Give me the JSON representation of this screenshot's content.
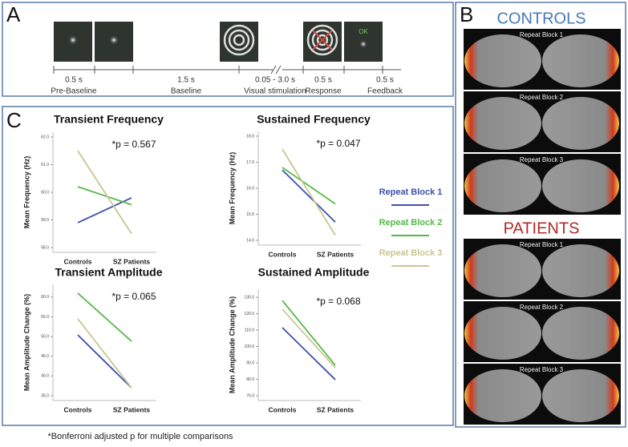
{
  "panel_labels": {
    "a": "A",
    "b": "B",
    "c": "C"
  },
  "timeline": {
    "steps": [
      {
        "duration": "0.5 s",
        "label": "Pre-Baseline"
      },
      {
        "duration": "1.5 s",
        "label": "Baseline"
      },
      {
        "duration": "0.05 - 3.0 s",
        "label": "Visual stimulation"
      },
      {
        "duration": "0.5 s",
        "label": "Response"
      },
      {
        "duration": "0.5 s",
        "label": "Feedback"
      }
    ],
    "feedback_text": "OK"
  },
  "brain_panel": {
    "groups": [
      {
        "title": "CONTROLS",
        "blocks": [
          "Repeat Block 1",
          "Repeat Block 2",
          "Repeat Block 3"
        ]
      },
      {
        "title": "PATIENTS",
        "blocks": [
          "Repeat Block 1",
          "Repeat Block 2",
          "Repeat Block 3"
        ]
      }
    ]
  },
  "footnote": "*Bonferroni adjusted p for multiple comparisons",
  "chart_data": [
    {
      "type": "line",
      "title": "Transient Frequency",
      "y_label": "Mean Frequency (Hz)",
      "annotation": "*p = 0.567",
      "categories": [
        "Controls",
        "SZ Patients"
      ],
      "series": [
        {
          "name": "Repeat Block 1",
          "color": "#3f4fae",
          "values": [
            58.9,
            59.8
          ]
        },
        {
          "name": "Repeat Block 2",
          "color": "#56b848",
          "values": [
            60.2,
            59.55
          ]
        },
        {
          "name": "Repeat Block 3",
          "color": "#c9c593",
          "values": [
            61.5,
            58.5
          ]
        }
      ],
      "ylim": [
        58,
        62
      ],
      "yticks": [
        {
          "value": 58,
          "label": "58.0"
        },
        {
          "value": 59,
          "label": "59.0"
        },
        {
          "value": 60,
          "label": "60.0"
        },
        {
          "value": 61,
          "label": "61.0"
        },
        {
          "value": 62,
          "label": "62.0"
        }
      ]
    },
    {
      "type": "line",
      "title": "Sustained Frequency",
      "y_label": "Mean Frequency (Hz)",
      "annotation": "*p = 0.047",
      "categories": [
        "Controls",
        "SZ Patients"
      ],
      "series": [
        {
          "name": "Repeat Block 1",
          "color": "#3f4fae",
          "values": [
            16.7,
            14.7
          ]
        },
        {
          "name": "Repeat Block 2",
          "color": "#56b848",
          "values": [
            16.8,
            15.4
          ]
        },
        {
          "name": "Repeat Block 3",
          "color": "#c9c593",
          "values": [
            17.5,
            14.2
          ]
        }
      ],
      "ylim": [
        14,
        18
      ],
      "yticks": [
        {
          "value": 14,
          "label": "14.0"
        },
        {
          "value": 15,
          "label": "15.0"
        },
        {
          "value": 16,
          "label": "16.0"
        },
        {
          "value": 17,
          "label": "17.0"
        },
        {
          "value": 18,
          "label": "18.0"
        }
      ]
    },
    {
      "type": "line",
      "title": "Transient Amplitude",
      "y_label": "Mean Amplitude Change (%)",
      "annotation": "*p = 0.065",
      "categories": [
        "Controls",
        "SZ Patients"
      ],
      "series": [
        {
          "name": "Repeat Block 1",
          "color": "#3f4fae",
          "values": [
            50.4,
            37.0
          ]
        },
        {
          "name": "Repeat Block 2",
          "color": "#56b848",
          "values": [
            61.0,
            48.8
          ]
        },
        {
          "name": "Repeat Block 3",
          "color": "#c9c593",
          "values": [
            54.5,
            37.0
          ]
        }
      ],
      "ylim": [
        35,
        62
      ],
      "yticks": [
        {
          "value": 35,
          "label": "35.0"
        },
        {
          "value": 40,
          "label": "40.0"
        },
        {
          "value": 45,
          "label": "45.0"
        },
        {
          "value": 50,
          "label": "50.0"
        },
        {
          "value": 55,
          "label": "55.0"
        },
        {
          "value": 60,
          "label": "60.0"
        }
      ]
    },
    {
      "type": "line",
      "title": "Sustained Amplitude",
      "y_label": "Mean Amplitude Change (%)",
      "annotation": "*p = 0.068",
      "categories": [
        "Controls",
        "SZ Patients"
      ],
      "series": [
        {
          "name": "Repeat Block 1",
          "color": "#3f4fae",
          "values": [
            111.5,
            79.8
          ]
        },
        {
          "name": "Repeat Block 2",
          "color": "#56b848",
          "values": [
            128,
            88.6
          ]
        },
        {
          "name": "Repeat Block 3",
          "color": "#c9c593",
          "values": [
            122.7,
            87
          ]
        }
      ],
      "ylim": [
        70,
        132
      ],
      "yticks": [
        {
          "value": 70,
          "label": "70.0"
        },
        {
          "value": 80,
          "label": "80.0"
        },
        {
          "value": 90,
          "label": "90.0"
        },
        {
          "value": 100,
          "label": "100.0"
        },
        {
          "value": 110,
          "label": "110.0"
        },
        {
          "value": 120,
          "label": "120.0"
        },
        {
          "value": 130,
          "label": "130.0"
        }
      ]
    }
  ]
}
